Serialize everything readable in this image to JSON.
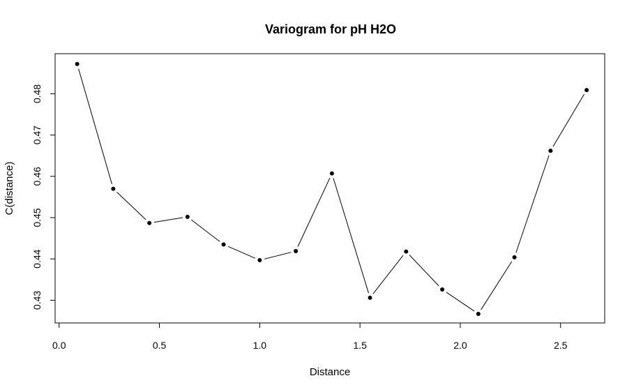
{
  "chart_data": {
    "type": "line",
    "title": "Variogram for pH H2O",
    "xlabel": "Distance",
    "ylabel": "C(distance)",
    "xlim": [
      -0.02,
      2.72
    ],
    "ylim": [
      0.4245,
      0.4897
    ],
    "x_ticks": [
      0.0,
      0.5,
      1.0,
      1.5,
      2.0,
      2.5
    ],
    "x_tick_labels": [
      "0.0",
      "0.5",
      "1.0",
      "1.5",
      "2.0",
      "2.5"
    ],
    "y_ticks": [
      0.43,
      0.44,
      0.45,
      0.46,
      0.47,
      0.48
    ],
    "y_tick_labels": [
      "0.43",
      "0.44",
      "0.45",
      "0.46",
      "0.47",
      "0.48"
    ],
    "grid": false,
    "legend": "none",
    "series": [
      {
        "x": [
          0.09,
          0.27,
          0.45,
          0.64,
          0.82,
          1.0,
          1.18,
          1.36,
          1.55,
          1.73,
          1.91,
          2.09,
          2.27,
          2.45,
          2.63
        ],
        "y": [
          0.4872,
          0.457,
          0.4487,
          0.4502,
          0.4435,
          0.4397,
          0.4419,
          0.4607,
          0.4306,
          0.4418,
          0.4326,
          0.4267,
          0.4404,
          0.4662,
          0.4809
        ]
      }
    ]
  }
}
